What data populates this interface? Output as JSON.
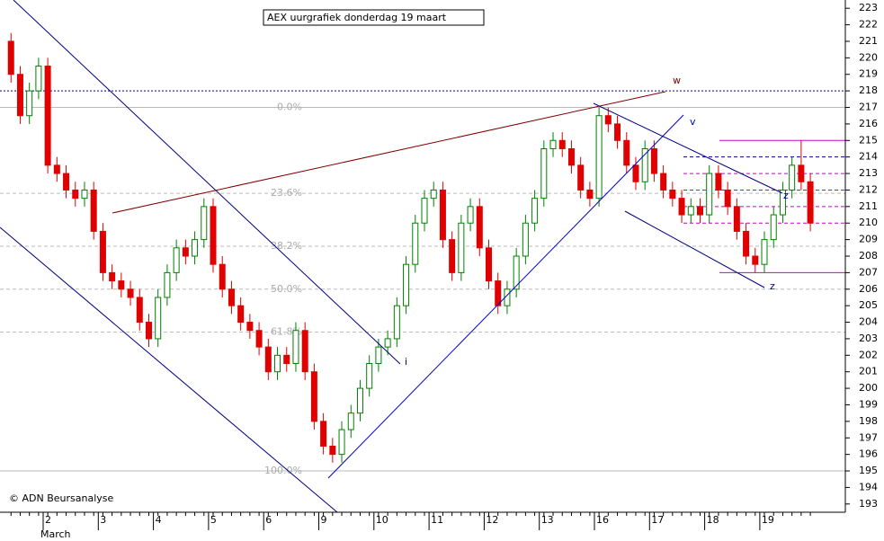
{
  "chart_data": {
    "type": "candlestick",
    "title": "AEX uurgrafiek donderdag 19 maart",
    "credit": "© ADN Beursanalyse",
    "month_label": "March",
    "categories": [
      null,
      null,
      null,
      null,
      "2",
      null,
      null,
      null,
      null,
      null,
      "3",
      null,
      null,
      null,
      null,
      null,
      "4",
      null,
      null,
      null,
      null,
      null,
      "5",
      null,
      null,
      null,
      null,
      null,
      "6",
      null,
      null,
      null,
      null,
      null,
      "9",
      null,
      null,
      null,
      null,
      null,
      "10",
      null,
      null,
      null,
      null,
      null,
      "11",
      null,
      null,
      null,
      null,
      null,
      "12",
      null,
      null,
      null,
      null,
      null,
      "13",
      null,
      null,
      null,
      null,
      null,
      "16",
      null,
      null,
      null,
      null,
      null,
      "17",
      null,
      null,
      null,
      null,
      null,
      "18",
      null,
      null,
      null,
      null,
      null,
      "19",
      null,
      null,
      null,
      null,
      null
    ],
    "open": [
      221,
      219,
      216.5,
      218,
      219.5,
      213.5,
      213,
      212,
      211.5,
      212,
      209.5,
      207,
      206.5,
      206,
      205.5,
      204,
      203,
      205.5,
      207,
      208.5,
      208,
      209,
      211,
      207.5,
      206,
      205,
      204,
      203.5,
      202.5,
      201,
      202,
      201.5,
      203.5,
      201,
      198,
      196.5,
      196,
      197.5,
      198.5,
      200,
      201.5,
      202.5,
      203,
      205,
      207.5,
      210,
      211.5,
      212,
      209,
      207,
      210,
      211,
      208.5,
      206.5,
      205,
      206,
      208,
      210,
      211.5,
      214.5,
      215,
      214.5,
      213.5,
      212,
      211.5,
      216.5,
      216,
      215,
      213.5,
      212.5,
      214.5,
      213,
      212,
      211.5,
      210.5,
      211,
      210.5,
      213,
      212,
      211,
      209.5,
      208,
      207.5,
      209,
      210.5,
      212,
      213.5,
      212.5
    ],
    "high": [
      221.5,
      219.5,
      218.5,
      220,
      220,
      214,
      213.5,
      212.5,
      212.5,
      212.5,
      210,
      207.5,
      207,
      206.5,
      206,
      204.5,
      206,
      207.5,
      209,
      209,
      209.5,
      211.5,
      211.5,
      208,
      206.5,
      205.5,
      204.5,
      204,
      203,
      202.5,
      202.5,
      204,
      204,
      201.5,
      198.5,
      197,
      198,
      199,
      200.5,
      202,
      203,
      203.5,
      205.5,
      208,
      210.5,
      212,
      212.5,
      212.5,
      209.5,
      210.5,
      211.5,
      211.5,
      209,
      207,
      206.5,
      208.5,
      210.5,
      212,
      215,
      215.5,
      215.5,
      215,
      214,
      212.5,
      217,
      217,
      216.5,
      215.5,
      214,
      215,
      215,
      213.5,
      212.5,
      212,
      211.5,
      211.5,
      213.5,
      213.5,
      212.5,
      211.5,
      210,
      208.5,
      209.5,
      211,
      212.5,
      214,
      215,
      213
    ],
    "low": [
      218.5,
      216,
      216,
      217.5,
      213,
      212.5,
      211.5,
      211,
      211,
      209,
      206.5,
      206,
      205.5,
      205,
      203.5,
      202.5,
      202.5,
      205,
      206.5,
      207.5,
      207.5,
      208.5,
      207,
      205.5,
      204.5,
      203.5,
      203,
      202,
      200.5,
      200.5,
      201,
      201,
      200.5,
      197.5,
      196,
      195.5,
      195.5,
      197,
      198,
      199.5,
      201,
      202,
      202.5,
      204.5,
      207,
      209.5,
      211,
      208.5,
      206.5,
      206.5,
      209.5,
      208,
      206,
      204.5,
      204.5,
      205.5,
      207.5,
      209.5,
      211,
      214,
      214,
      213,
      211.5,
      211,
      211,
      215.5,
      214.5,
      213,
      212,
      212,
      212.5,
      211.5,
      211,
      210,
      210,
      210,
      210,
      211.5,
      210.5,
      209,
      207.5,
      207,
      207,
      208.5,
      210,
      211.5,
      212,
      209.5
    ],
    "close": [
      219,
      216.5,
      218,
      219.5,
      213.5,
      213,
      212,
      211.5,
      212,
      209.5,
      207,
      206.5,
      206,
      205.5,
      204,
      203,
      205.5,
      207,
      208.5,
      208,
      209,
      211,
      207.5,
      206,
      205,
      204,
      203.5,
      202.5,
      201,
      202,
      201.5,
      203.5,
      201,
      198,
      196.5,
      196,
      197.5,
      198.5,
      200,
      201.5,
      202.5,
      203,
      205,
      207.5,
      210,
      211.5,
      212,
      209,
      207,
      210,
      211,
      208.5,
      206.5,
      205,
      206,
      208,
      210,
      211.5,
      214.5,
      215,
      214.5,
      213.5,
      212,
      211.5,
      216.5,
      216,
      215,
      213.5,
      212.5,
      214.5,
      213,
      212,
      211.5,
      210.5,
      211,
      210.5,
      213,
      212,
      211,
      209.5,
      208,
      207.5,
      209,
      210.5,
      212,
      213.5,
      212.5,
      210
    ],
    "up_color": "#008000",
    "down_color": "#e00000",
    "ylim": [
      192.5,
      223.5
    ],
    "yticks": [
      193,
      194,
      195,
      196,
      197,
      198,
      199,
      200,
      201,
      202,
      203,
      204,
      205,
      206,
      207,
      208,
      209,
      210,
      211,
      212,
      213,
      214,
      215,
      216,
      217,
      218,
      219,
      220,
      221,
      222,
      223
    ],
    "fibonacci": [
      {
        "value": 217,
        "label": "0.0%"
      },
      {
        "value": 211.8,
        "label": "23.6%"
      },
      {
        "value": 208.6,
        "label": "38.2%"
      },
      {
        "value": 206,
        "label": "50.0%"
      },
      {
        "value": 203.4,
        "label": "61.8%"
      },
      {
        "value": 195,
        "label": "100.0%"
      }
    ],
    "levels": [
      {
        "value": 218,
        "color": "#000080",
        "style": "dotted"
      },
      {
        "value": 215,
        "color": "#cc00cc",
        "style": "solid"
      },
      {
        "value": 214,
        "color": "#000080",
        "style": "dashed"
      },
      {
        "value": 213,
        "color": "#cc00cc",
        "style": "dashed"
      },
      {
        "value": 212,
        "color": "#cc00cc",
        "style": "dashed"
      },
      {
        "value": 211,
        "color": "#cc00cc",
        "style": "dashed"
      },
      {
        "value": 210,
        "color": "#cc00cc",
        "style": "dashed"
      },
      {
        "value": 207,
        "color": "#cc00cc",
        "style": "solid"
      }
    ],
    "wave_labels": [
      "w",
      "v",
      "i",
      "z",
      "z"
    ]
  }
}
